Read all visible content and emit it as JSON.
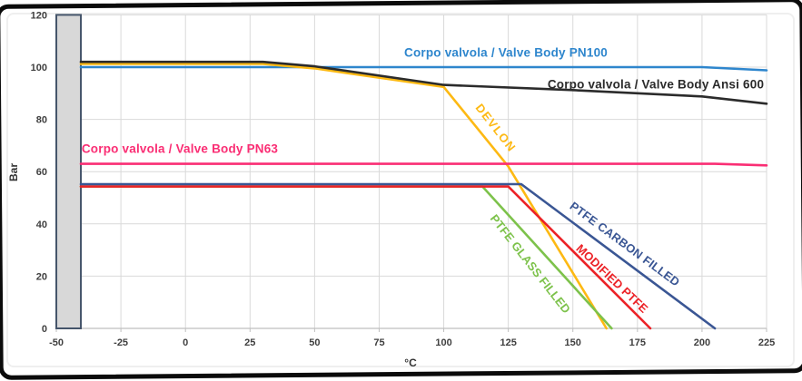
{
  "chart_data": {
    "type": "line",
    "title": "",
    "xlabel": "°C",
    "ylabel": "Bar",
    "xlim": [
      -50,
      225
    ],
    "ylim": [
      0,
      120
    ],
    "x_ticks": [
      -50,
      -25,
      0,
      25,
      50,
      75,
      100,
      125,
      150,
      175,
      200,
      225
    ],
    "y_ticks": [
      0,
      20,
      40,
      60,
      80,
      100,
      120
    ],
    "grid": true,
    "legend_position": "inline-labels",
    "min_temperature_bar": {
      "x_from": -50,
      "x_to": -40.5,
      "fill": "#d8d8d8",
      "border": "#44546a",
      "meaning": "minimum temperature limit band at -40 °C"
    },
    "series": [
      {
        "name": "Corpo valvola / Valve Body PN100",
        "color": "#2e86cd",
        "points": [
          [
            -40.5,
            100
          ],
          [
            200,
            100
          ],
          [
            225,
            98.8
          ]
        ]
      },
      {
        "name": "Corpo valvola / Valve Body Ansi 600",
        "color": "#2b2b2b",
        "points": [
          [
            -40.5,
            102
          ],
          [
            30,
            102
          ],
          [
            50,
            100.3
          ],
          [
            100,
            93.2
          ],
          [
            150,
            91.2
          ],
          [
            200,
            88.8
          ],
          [
            225,
            86
          ]
        ]
      },
      {
        "name": "Corpo valvola / Valve Body PN63",
        "color": "#fa2e74",
        "points": [
          [
            -40.5,
            63
          ],
          [
            205,
            63
          ],
          [
            225,
            62.4
          ]
        ]
      },
      {
        "name": "DEVLON",
        "color": "#fdb913",
        "points": [
          [
            -40.5,
            101.2
          ],
          [
            30,
            101.2
          ],
          [
            50,
            99.5
          ],
          [
            100,
            92.4
          ],
          [
            125,
            62
          ],
          [
            163,
            0
          ]
        ]
      },
      {
        "name": "PTFE CARBON FILLED",
        "color": "#3a5694",
        "points": [
          [
            -40.5,
            55.2
          ],
          [
            130,
            55.2
          ],
          [
            205,
            0
          ]
        ]
      },
      {
        "name": "MODIFIED PTFE",
        "color": "#ec2227",
        "points": [
          [
            -40.5,
            54.3
          ],
          [
            125,
            54.3
          ],
          [
            180,
            0
          ]
        ]
      },
      {
        "name": "PTFE GLASS FILLED",
        "color": "#7dc24b",
        "points": [
          [
            -40.5,
            54.3
          ],
          [
            115,
            54.3
          ],
          [
            165,
            0
          ]
        ]
      }
    ]
  }
}
